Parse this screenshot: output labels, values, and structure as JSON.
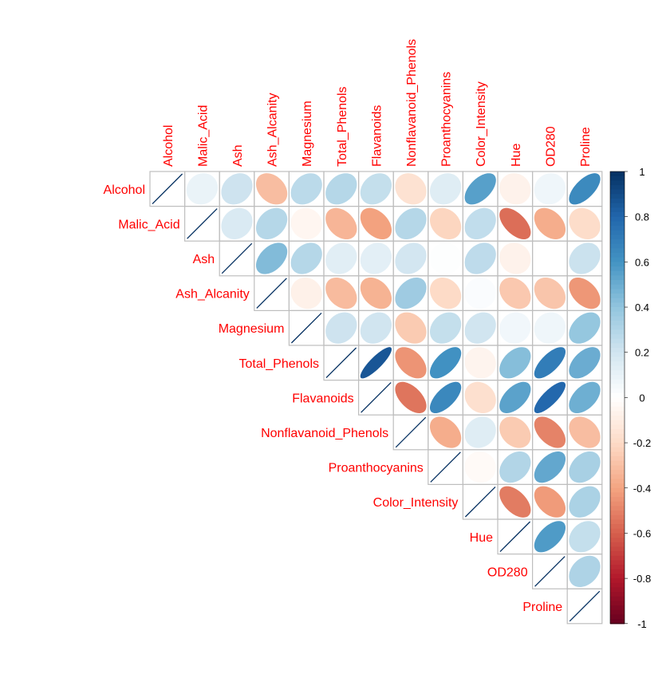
{
  "chart_data": {
    "type": "heatmap",
    "style": "corrplot upper triangle, ellipse glyphs",
    "variables": [
      "Alcohol",
      "Malic_Acid",
      "Ash",
      "Ash_Alcanity",
      "Magnesium",
      "Total_Phenols",
      "Flavanoids",
      "Nonflavanoid_Phenols",
      "Proanthocyanins",
      "Color_Intensity",
      "Hue",
      "OD280",
      "Proline"
    ],
    "matrix": [
      [
        1,
        0.09,
        0.21,
        -0.31,
        0.27,
        0.29,
        0.24,
        -0.16,
        0.14,
        0.55,
        -0.07,
        0.07,
        0.64
      ],
      [
        0.09,
        1,
        0.16,
        0.29,
        -0.05,
        -0.34,
        -0.41,
        0.29,
        -0.22,
        0.25,
        -0.56,
        -0.37,
        -0.19
      ],
      [
        0.21,
        0.16,
        1,
        0.44,
        0.29,
        0.13,
        0.12,
        0.19,
        0.01,
        0.26,
        -0.07,
        0.0,
        0.22
      ],
      [
        -0.31,
        0.29,
        0.44,
        1,
        -0.08,
        -0.32,
        -0.35,
        0.36,
        -0.2,
        0.02,
        -0.27,
        -0.28,
        -0.44
      ],
      [
        0.27,
        -0.05,
        0.29,
        -0.08,
        1,
        0.21,
        0.2,
        -0.26,
        0.24,
        0.2,
        0.06,
        0.07,
        0.39
      ],
      [
        0.29,
        -0.34,
        0.13,
        -0.32,
        0.21,
        1,
        0.86,
        -0.45,
        0.61,
        -0.06,
        0.43,
        0.7,
        0.5
      ],
      [
        0.24,
        -0.41,
        0.12,
        -0.35,
        0.2,
        0.86,
        1,
        -0.54,
        0.65,
        -0.17,
        0.54,
        0.79,
        0.49
      ],
      [
        -0.16,
        0.29,
        0.19,
        0.36,
        -0.26,
        -0.45,
        -0.54,
        1,
        -0.37,
        0.14,
        -0.26,
        -0.5,
        -0.31
      ],
      [
        0.14,
        -0.22,
        0.01,
        -0.2,
        0.24,
        0.61,
        0.65,
        -0.37,
        1,
        -0.03,
        0.3,
        0.52,
        0.33
      ],
      [
        0.55,
        0.25,
        0.26,
        0.02,
        0.2,
        -0.06,
        -0.17,
        0.14,
        -0.03,
        1,
        -0.52,
        -0.43,
        0.32
      ],
      [
        -0.07,
        -0.56,
        -0.07,
        -0.27,
        0.06,
        0.43,
        0.54,
        -0.26,
        0.3,
        -0.52,
        1,
        0.57,
        0.24
      ],
      [
        0.07,
        -0.37,
        0.0,
        -0.28,
        0.07,
        0.7,
        0.79,
        -0.5,
        0.52,
        -0.43,
        0.57,
        1,
        0.31
      ],
      [
        0.64,
        -0.19,
        0.22,
        -0.44,
        0.39,
        0.5,
        0.49,
        -0.31,
        0.33,
        0.32,
        0.24,
        0.31,
        1
      ]
    ],
    "colorbar": {
      "ticks": [
        "1",
        "0.8",
        "0.6",
        "0.4",
        "0.2",
        "0",
        "-0.2",
        "-0.4",
        "-0.6",
        "-0.8",
        "-1"
      ],
      "range": [
        -1,
        1
      ],
      "palette": [
        "#67001F",
        "#B2182B",
        "#D6604D",
        "#F4A582",
        "#FDDBC7",
        "#FFFFFF",
        "#D1E5F0",
        "#92C5DE",
        "#4393C3",
        "#2166AC",
        "#053061"
      ]
    },
    "label_color": "#FF0000",
    "grid_color": "#BEBEBE"
  }
}
